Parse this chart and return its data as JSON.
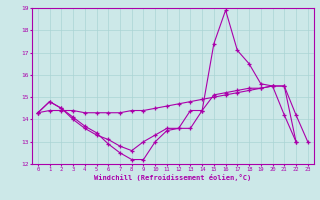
{
  "xlabel": "Windchill (Refroidissement éolien,°C)",
  "bg_color": "#cce8e8",
  "line_color": "#aa00aa",
  "grid_color": "#aad4d4",
  "x": [
    0,
    1,
    2,
    3,
    4,
    5,
    6,
    7,
    8,
    9,
    10,
    11,
    12,
    13,
    14,
    15,
    16,
    17,
    18,
    19,
    20,
    21,
    22,
    23
  ],
  "line1": [
    14.3,
    14.8,
    14.5,
    14.1,
    13.7,
    13.4,
    12.9,
    12.5,
    12.2,
    12.2,
    13.0,
    13.5,
    13.6,
    13.6,
    14.4,
    15.1,
    15.2,
    15.3,
    15.4,
    15.4,
    15.5,
    15.5,
    13.0,
    null
  ],
  "line2": [
    14.3,
    14.8,
    14.5,
    14.0,
    13.6,
    13.3,
    13.1,
    12.8,
    12.6,
    13.0,
    13.3,
    13.6,
    13.6,
    14.4,
    14.4,
    17.4,
    18.9,
    17.1,
    16.5,
    15.6,
    15.5,
    14.2,
    13.0,
    null
  ],
  "line3": [
    14.3,
    14.4,
    14.4,
    14.4,
    14.3,
    14.3,
    14.3,
    14.3,
    14.4,
    14.4,
    14.5,
    14.6,
    14.7,
    14.8,
    14.9,
    15.0,
    15.1,
    15.2,
    15.3,
    15.4,
    15.5,
    15.5,
    14.2,
    13.0
  ],
  "ylim": [
    12,
    19
  ],
  "yticks": [
    12,
    13,
    14,
    15,
    16,
    17,
    18,
    19
  ]
}
